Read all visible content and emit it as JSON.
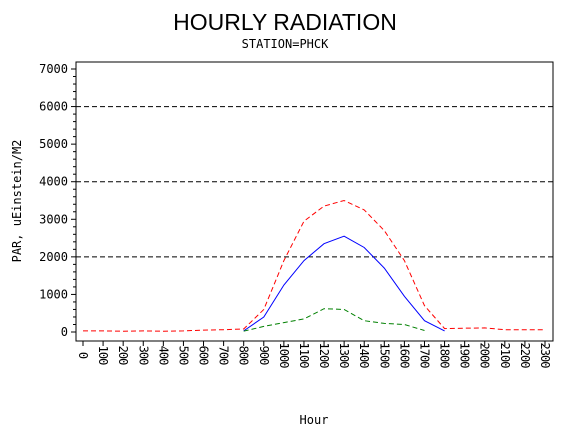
{
  "chart_data": {
    "type": "line",
    "title": "HOURLY RADIATION",
    "subtitle": "STATION=PHCK",
    "xlabel": "Hour",
    "ylabel": "PAR, uEinstein/M2",
    "x": [
      0,
      100,
      200,
      300,
      400,
      500,
      600,
      700,
      800,
      900,
      1000,
      1100,
      1200,
      1300,
      1400,
      1500,
      1600,
      1700,
      1800,
      1900,
      2000,
      2100,
      2200,
      2300
    ],
    "xticks": [
      "0",
      "100",
      "200",
      "300",
      "400",
      "500",
      "600",
      "700",
      "800",
      "900",
      "1000",
      "1100",
      "1200",
      "1300",
      "1400",
      "1500",
      "1600",
      "1700",
      "1800",
      "1900",
      "2000",
      "2100",
      "2200",
      "2300"
    ],
    "yticks": [
      0,
      1000,
      2000,
      3000,
      4000,
      5000,
      6000,
      7000
    ],
    "ylim": [
      0,
      7000
    ],
    "xlim": [
      0,
      2300
    ],
    "reference_lines": [
      2000,
      4000,
      6000
    ],
    "grid": false,
    "series": [
      {
        "color": "#ff0000",
        "dash": "dashed",
        "x": [
          0,
          100,
          200,
          300,
          400,
          500,
          600,
          700,
          800,
          900,
          1000,
          1100,
          1200,
          1300,
          1400,
          1500,
          1600,
          1700,
          1800,
          1900,
          2000,
          2100,
          2200,
          2300
        ],
        "values": [
          30,
          30,
          20,
          30,
          20,
          30,
          50,
          60,
          80,
          600,
          1900,
          2950,
          3350,
          3500,
          3250,
          2700,
          1900,
          700,
          90,
          100,
          110,
          60,
          60,
          60
        ]
      },
      {
        "color": "#0000ff",
        "dash": "solid",
        "x": [
          800,
          900,
          1000,
          1100,
          1200,
          1300,
          1400,
          1500,
          1600,
          1700,
          1800
        ],
        "values": [
          30,
          400,
          1250,
          1900,
          2350,
          2550,
          2250,
          1700,
          950,
          300,
          30
        ]
      },
      {
        "color": "#008000",
        "dash": "dashed",
        "x": [
          800,
          900,
          1000,
          1100,
          1200,
          1300,
          1400,
          1500,
          1600,
          1700
        ],
        "values": [
          20,
          150,
          250,
          350,
          620,
          600,
          300,
          230,
          200,
          40
        ]
      }
    ]
  }
}
